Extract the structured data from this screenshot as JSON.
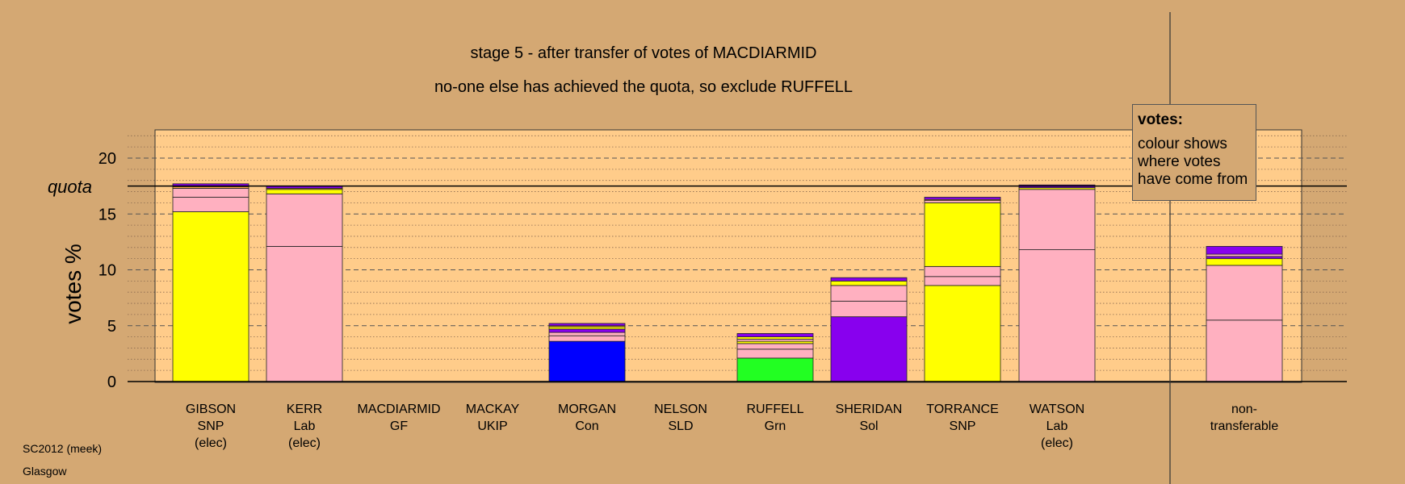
{
  "chart_data": {
    "type": "bar",
    "stacked": true,
    "title": "stage 5 - after transfer of votes of MACDIARMID",
    "subtitle": "no-one else has achieved the quota, so exclude RUFFELL",
    "ylabel": "votes %",
    "ylim": [
      0,
      22.5
    ],
    "yticks": [
      "0",
      "5",
      "10",
      "15",
      "20"
    ],
    "quota_label": "quota",
    "quota": 17.5,
    "grid": "dashed major lines every 5, dotted minor lines every 1",
    "colors": {
      "yellow": "#ffff00",
      "pink": "#ffb0c0",
      "purple": "#8800ee",
      "blue": "#0000ff",
      "green": "#22ff22",
      "orange": "#ffaa44",
      "black": "#000000"
    },
    "categories": [
      {
        "name": "GIBSON",
        "party": "SNP",
        "status": "(elec)",
        "segments": [
          [
            15.2,
            "yellow"
          ],
          [
            1.3,
            "pink"
          ],
          [
            0.8,
            "pink"
          ],
          [
            0.15,
            "orange"
          ],
          [
            0.25,
            "purple"
          ]
        ]
      },
      {
        "name": "KERR",
        "party": "Lab",
        "status": "(elec)",
        "segments": [
          [
            12.1,
            "pink"
          ],
          [
            4.7,
            "pink"
          ],
          [
            0.4,
            "yellow"
          ],
          [
            0.1,
            "orange"
          ],
          [
            0.2,
            "purple"
          ]
        ]
      },
      {
        "name": "MACDIARMID",
        "party": "GF",
        "status": "",
        "segments": []
      },
      {
        "name": "MACKAY",
        "party": "UKIP",
        "status": "",
        "segments": []
      },
      {
        "name": "MORGAN",
        "party": "Con",
        "status": "",
        "segments": [
          [
            3.6,
            "blue"
          ],
          [
            0.5,
            "pink"
          ],
          [
            0.3,
            "pink"
          ],
          [
            0.3,
            "purple"
          ],
          [
            0.2,
            "yellow"
          ],
          [
            0.1,
            "orange"
          ],
          [
            0.2,
            "purple"
          ]
        ]
      },
      {
        "name": "NELSON",
        "party": "SLD",
        "status": "",
        "segments": []
      },
      {
        "name": "RUFFELL",
        "party": "Grn",
        "status": "",
        "segments": [
          [
            2.1,
            "green"
          ],
          [
            0.8,
            "pink"
          ],
          [
            0.5,
            "pink"
          ],
          [
            0.2,
            "yellow"
          ],
          [
            0.2,
            "pink"
          ],
          [
            0.2,
            "yellow"
          ],
          [
            0.3,
            "purple"
          ]
        ]
      },
      {
        "name": "SHERIDAN",
        "party": "Sol",
        "status": "",
        "segments": [
          [
            5.8,
            "purple"
          ],
          [
            1.4,
            "pink"
          ],
          [
            1.4,
            "pink"
          ],
          [
            0.4,
            "yellow"
          ],
          [
            0.3,
            "purple"
          ]
        ]
      },
      {
        "name": "TORRANCE",
        "party": "SNP",
        "status": "",
        "segments": [
          [
            8.6,
            "yellow"
          ],
          [
            0.8,
            "pink"
          ],
          [
            0.9,
            "pink"
          ],
          [
            5.7,
            "yellow"
          ],
          [
            0.2,
            "pink"
          ],
          [
            0.1,
            "orange"
          ],
          [
            0.2,
            "purple"
          ]
        ]
      },
      {
        "name": "WATSON",
        "party": "Lab",
        "status": "(elec)",
        "segments": [
          [
            11.8,
            "pink"
          ],
          [
            5.4,
            "pink"
          ],
          [
            0.15,
            "yellow"
          ],
          [
            0.25,
            "purple"
          ]
        ]
      },
      {
        "name": "non-",
        "party": "transferable",
        "status": "",
        "separate": true,
        "segments": [
          [
            5.5,
            "pink"
          ],
          [
            4.9,
            "pink"
          ],
          [
            0.6,
            "yellow"
          ],
          [
            0.2,
            "purple"
          ],
          [
            0.2,
            "pink"
          ],
          [
            0.7,
            "purple"
          ]
        ]
      }
    ]
  },
  "legend": {
    "title": "votes:",
    "lines": [
      "colour shows",
      "where votes",
      "have come from"
    ]
  },
  "footer": {
    "source": "SC2012 (meek)",
    "place": "Glasgow"
  }
}
